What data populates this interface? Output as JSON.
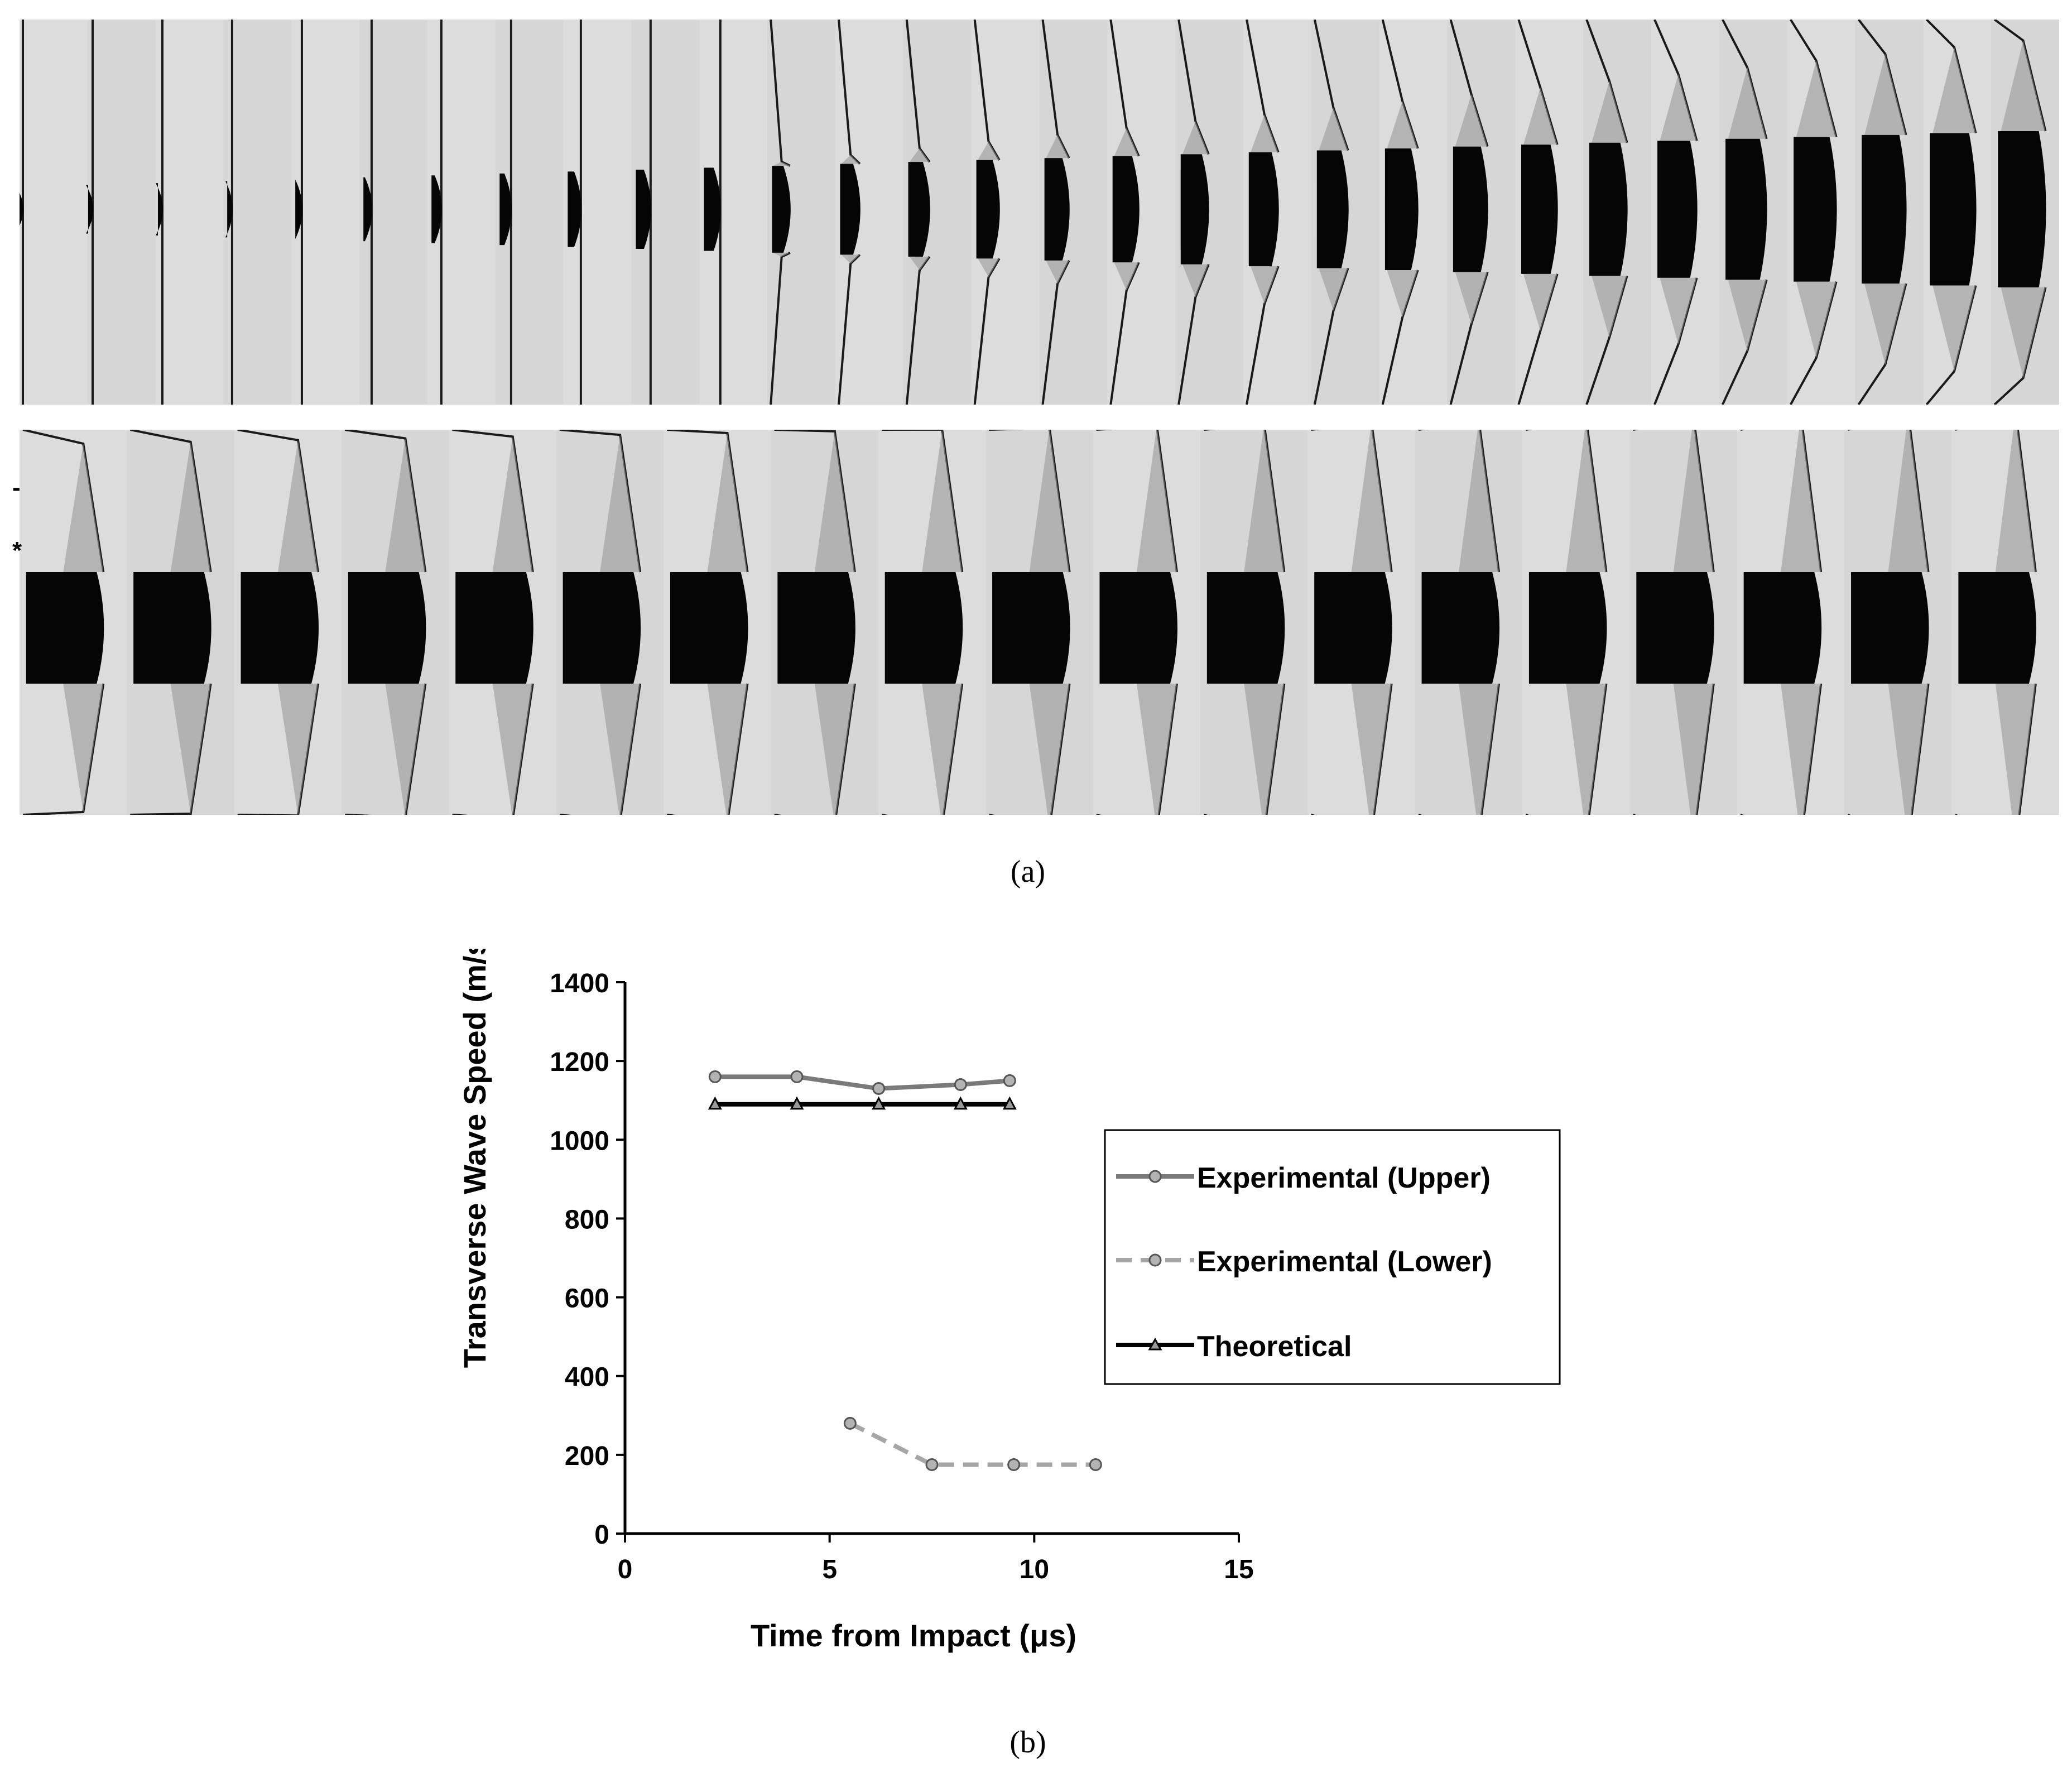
{
  "figure": {
    "caption_a": "(a)",
    "caption_b": "(b)",
    "markers": {
      "dash": "-",
      "star": "*"
    },
    "image_sequence": {
      "rows": 2,
      "top_row_frame_count": 30,
      "bottom_row_frame_count": 19,
      "background_color": "#d9d9d9",
      "projectile_color": "#050505"
    }
  },
  "chart_data": {
    "type": "line",
    "title": "",
    "xlabel": "Time from Impact (μs)",
    "ylabel": "Transverse Wave Speed (m/s)",
    "xlim": [
      0,
      15
    ],
    "ylim": [
      0,
      1400
    ],
    "xticks": [
      0,
      5,
      10,
      15
    ],
    "yticks": [
      0,
      200,
      400,
      600,
      800,
      1000,
      1200,
      1400
    ],
    "grid": false,
    "legend_position": "right",
    "series": [
      {
        "name": "Experimental (Upper)",
        "color": "#7a7a7a",
        "dash": "solid",
        "marker": "circle",
        "x": [
          2.2,
          4.2,
          6.2,
          8.2,
          9.4
        ],
        "y": [
          1160,
          1160,
          1130,
          1140,
          1150
        ]
      },
      {
        "name": "Experimental (Lower)",
        "color": "#a6a6a6",
        "dash": "dashed",
        "marker": "circle",
        "x": [
          5.5,
          7.5,
          9.5,
          11.5
        ],
        "y": [
          280,
          175,
          175,
          175
        ]
      },
      {
        "name": "Theoretical",
        "color": "#000000",
        "dash": "solid",
        "marker": "triangle",
        "x": [
          2.2,
          4.2,
          6.2,
          8.2,
          9.4
        ],
        "y": [
          1090,
          1090,
          1090,
          1090,
          1090
        ]
      }
    ]
  }
}
